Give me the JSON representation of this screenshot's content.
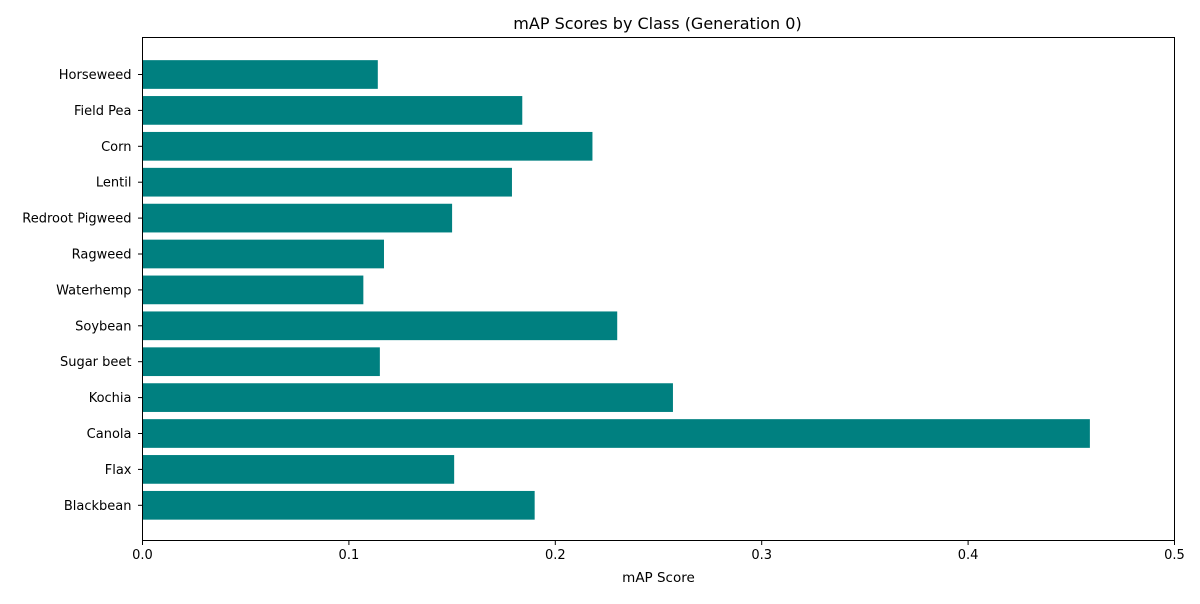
{
  "colors": {
    "bar": "#008080",
    "axis": "#000000",
    "background": "#ffffff"
  },
  "chart_data": {
    "type": "bar",
    "orientation": "horizontal",
    "title": "mAP Scores by Class (Generation 0)",
    "xlabel": "mAP Score",
    "ylabel": "",
    "xlim": [
      0,
      0.5
    ],
    "xticks": [
      0.0,
      0.1,
      0.2,
      0.3,
      0.4,
      0.5
    ],
    "xtick_labels": [
      "0.0",
      "0.1",
      "0.2",
      "0.3",
      "0.4",
      "0.5"
    ],
    "grid": false,
    "categories": [
      "Horseweed",
      "Field Pea",
      "Corn",
      "Lentil",
      "Redroot Pigweed",
      "Ragweed",
      "Waterhemp",
      "Soybean",
      "Sugar beet",
      "Kochia",
      "Canola",
      "Flax",
      "Blackbean"
    ],
    "values": [
      0.114,
      0.184,
      0.218,
      0.179,
      0.15,
      0.117,
      0.107,
      0.23,
      0.115,
      0.257,
      0.459,
      0.151,
      0.19
    ]
  }
}
